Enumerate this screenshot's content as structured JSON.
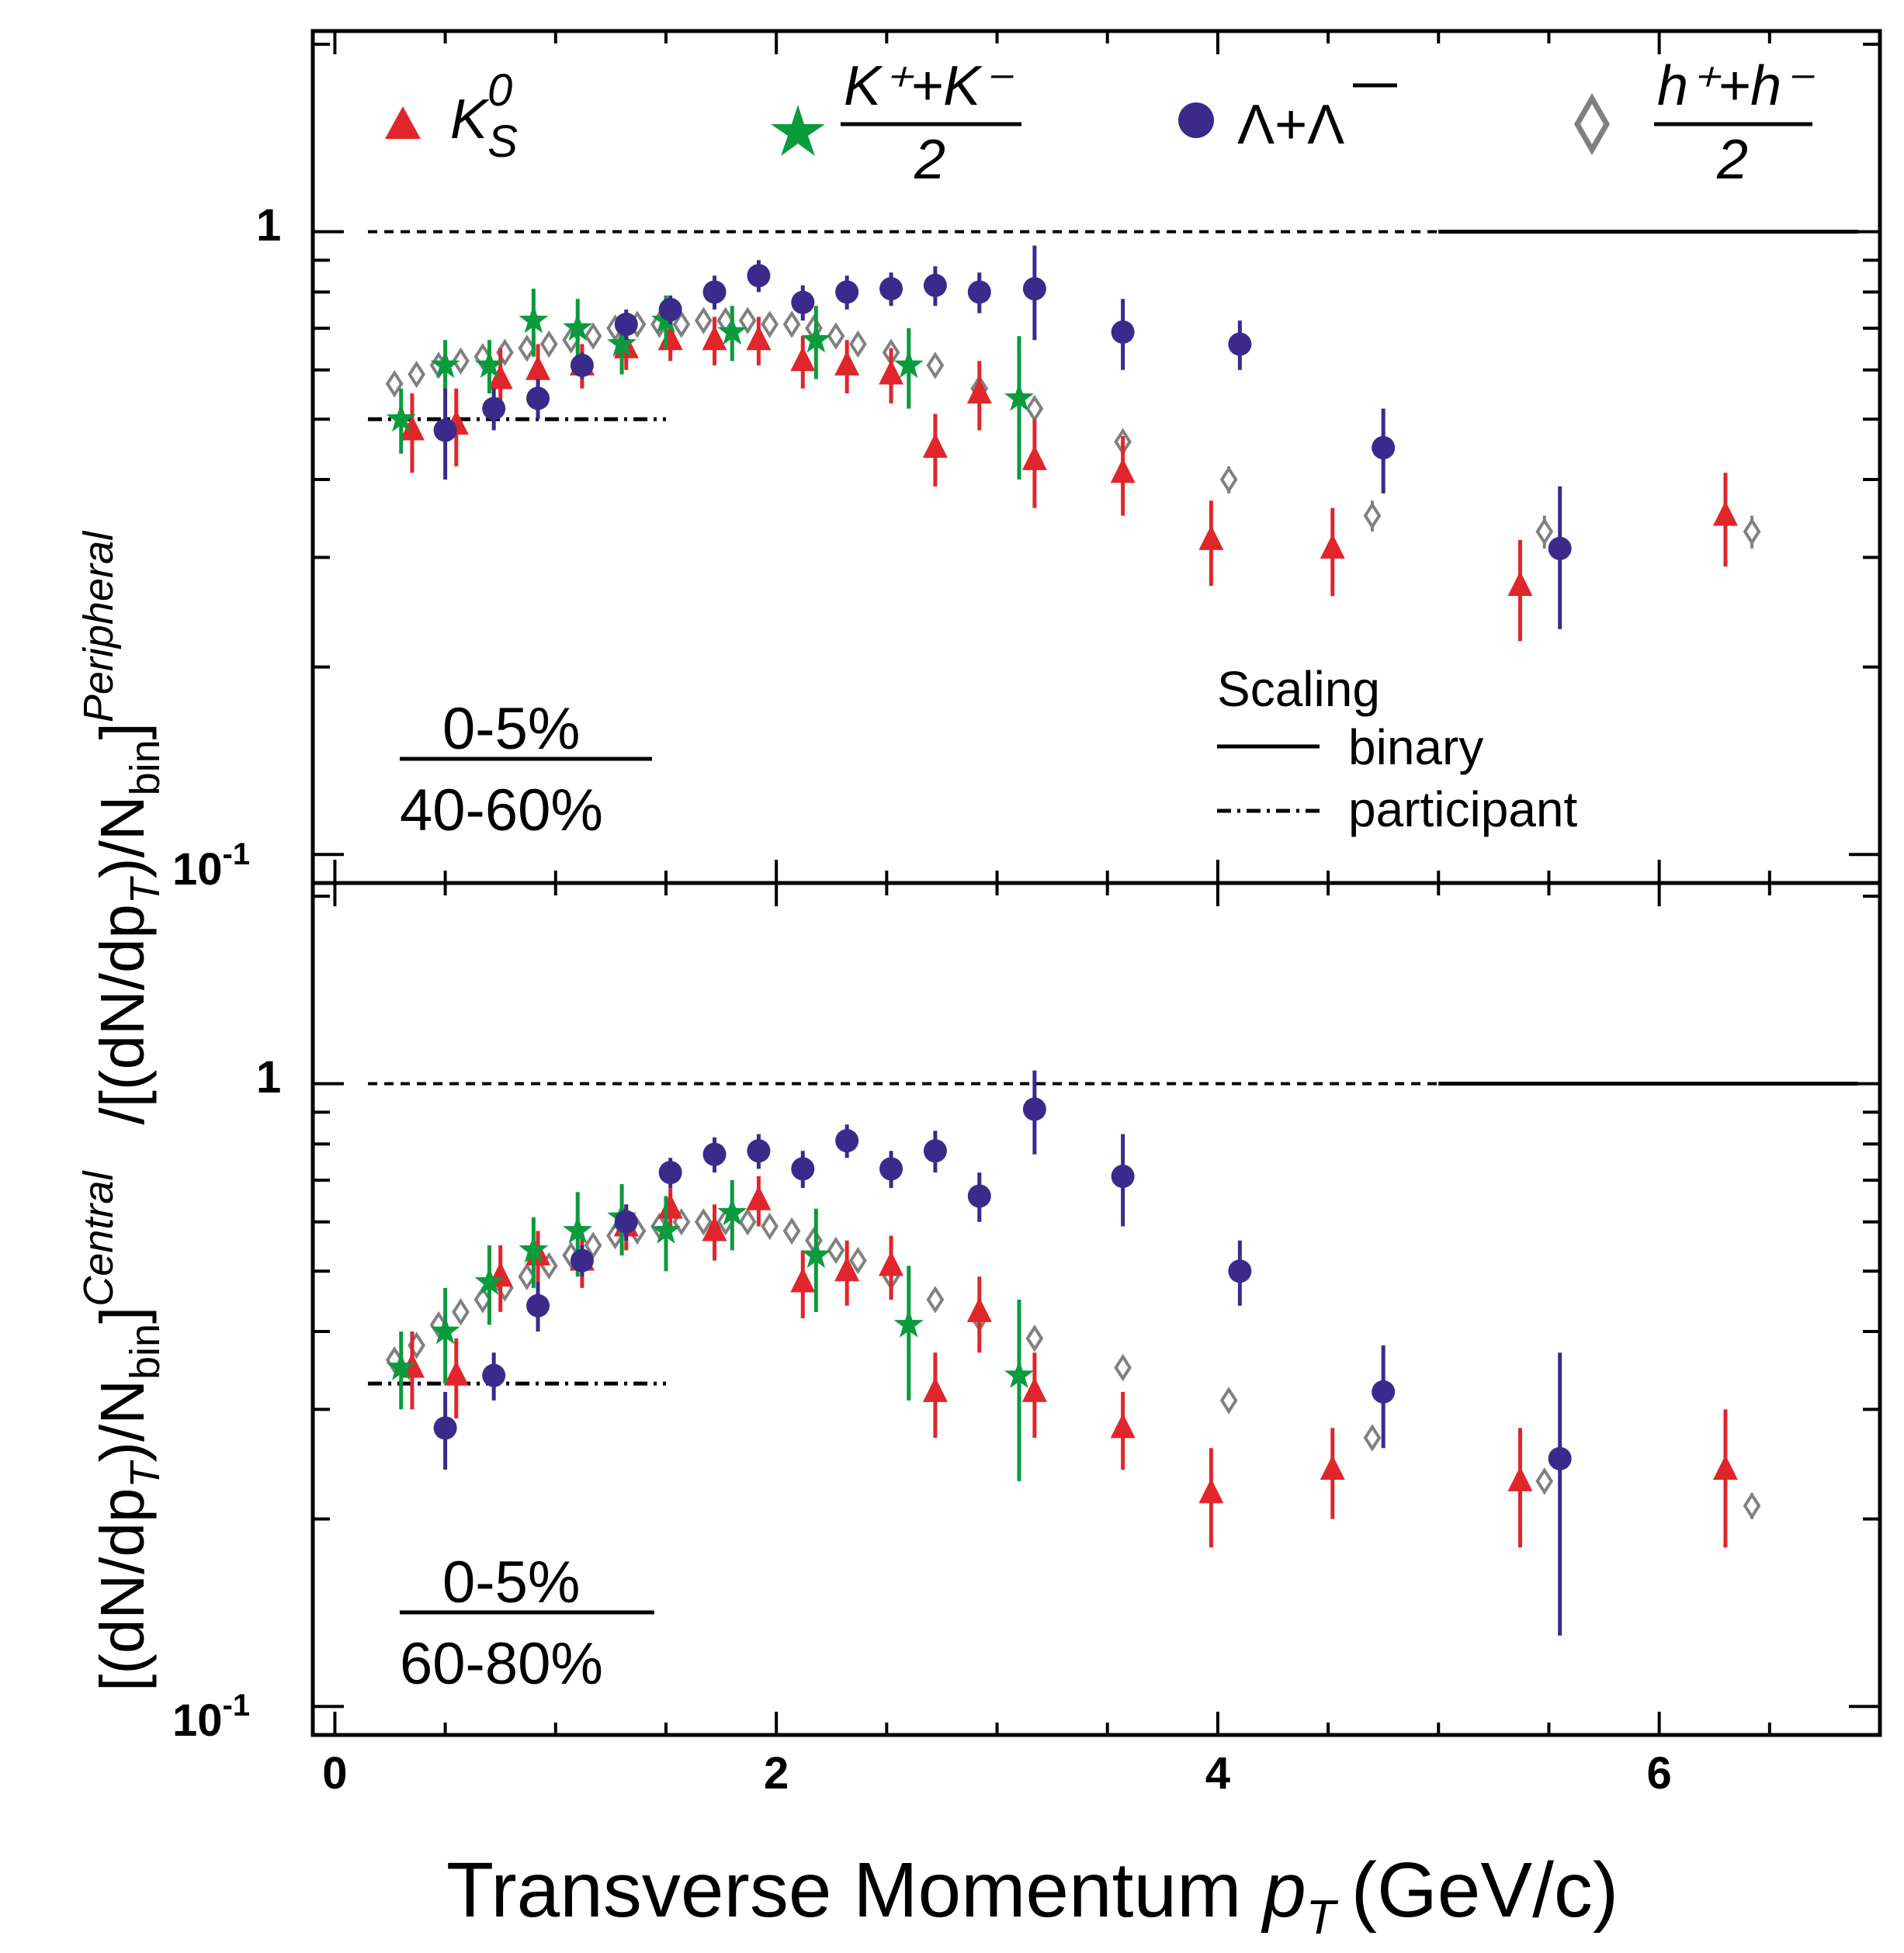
{
  "chart_data": {
    "type": "scatter",
    "x_axis": {
      "label": "Transverse Momentum",
      "variable": "p",
      "variable_sub": "T",
      "unit": "(GeV/c)",
      "range": [
        -0.1,
        7.0
      ],
      "ticks": [
        "0",
        "2",
        "4",
        "6"
      ]
    },
    "y_axis": {
      "scale": "log",
      "range": [
        0.09,
        2.1
      ],
      "tick_one": "1",
      "tick_tenth_base": "10",
      "tick_tenth_exp": "-1"
    },
    "y_title": {
      "central_part": "[(dN/dp",
      "central_sub": "T",
      "central_close": ")/N",
      "central_bin": "bin",
      "central_sup": "Central",
      "peripheral_part": "/[(dN/dp",
      "peripheral_sup": "Peripheral"
    },
    "legend": [
      {
        "key": "k0s",
        "marker": "triangle",
        "color": "#e0262b",
        "main": "K",
        "sup": "0",
        "sub": "S"
      },
      {
        "key": "kpm",
        "marker": "star",
        "color": "#0a9b3c",
        "numerator": "K⁺+K⁻",
        "denominator": "2"
      },
      {
        "key": "lambda",
        "marker": "circle",
        "color": "#3b2a8c",
        "label": "Λ+Λ"
      },
      {
        "key": "hpm",
        "marker": "diamond",
        "color": "#808080",
        "numerator": "h⁺+h⁻",
        "denominator": "2"
      }
    ],
    "scaling_legend": {
      "title": "Scaling",
      "binary": "binary",
      "participant": "participant"
    },
    "panels": [
      {
        "id": "top",
        "ratio_numerator": "0-5%",
        "ratio_denominator": "40-60%",
        "binary_level": 1.0,
        "participant_level": 0.5,
        "series": {
          "k0s": [
            [
              0.35,
              0.48,
              0.07
            ],
            [
              0.55,
              0.49,
              0.07
            ],
            [
              0.75,
              0.58,
              0.07
            ],
            [
              0.92,
              0.6,
              0.06
            ],
            [
              1.12,
              0.61,
              0.05
            ],
            [
              1.32,
              0.65,
              0.05
            ],
            [
              1.52,
              0.67,
              0.05
            ],
            [
              1.72,
              0.67,
              0.06
            ],
            [
              1.92,
              0.67,
              0.06
            ],
            [
              2.12,
              0.62,
              0.06
            ],
            [
              2.32,
              0.61,
              0.06
            ],
            [
              2.52,
              0.59,
              0.06
            ],
            [
              2.72,
              0.45,
              0.06
            ],
            [
              2.92,
              0.55,
              0.07
            ],
            [
              3.17,
              0.43,
              0.07
            ],
            [
              3.57,
              0.41,
              0.06
            ],
            [
              3.97,
              0.32,
              0.05
            ],
            [
              4.52,
              0.31,
              0.05
            ],
            [
              5.37,
              0.27,
              0.05
            ],
            [
              6.3,
              0.35,
              0.06
            ]
          ],
          "kpm": [
            [
              0.3,
              0.5,
              0.06
            ],
            [
              0.5,
              0.61,
              0.06
            ],
            [
              0.7,
              0.61,
              0.06
            ],
            [
              0.9,
              0.72,
              0.09
            ],
            [
              1.1,
              0.7,
              0.08
            ],
            [
              1.3,
              0.66,
              0.07
            ],
            [
              1.5,
              0.72,
              0.07
            ],
            [
              1.8,
              0.69,
              0.07
            ],
            [
              2.18,
              0.67,
              0.09
            ],
            [
              2.6,
              0.61,
              0.09
            ],
            [
              3.1,
              0.54,
              0.14
            ]
          ],
          "lambda": [
            [
              0.5,
              0.48,
              0.08
            ],
            [
              0.72,
              0.52,
              0.04
            ],
            [
              0.92,
              0.54,
              0.04
            ],
            [
              1.12,
              0.61,
              0.03
            ],
            [
              1.32,
              0.71,
              0.04
            ],
            [
              1.52,
              0.75,
              0.04
            ],
            [
              1.72,
              0.8,
              0.05
            ],
            [
              1.92,
              0.85,
              0.05
            ],
            [
              2.12,
              0.77,
              0.05
            ],
            [
              2.32,
              0.8,
              0.05
            ],
            [
              2.52,
              0.81,
              0.05
            ],
            [
              2.72,
              0.82,
              0.06
            ],
            [
              2.92,
              0.8,
              0.06
            ],
            [
              3.17,
              0.81,
              0.14
            ],
            [
              3.57,
              0.69,
              0.09
            ],
            [
              4.1,
              0.66,
              0.06
            ],
            [
              4.75,
              0.45,
              0.07
            ],
            [
              5.55,
              0.31,
              0.08
            ]
          ],
          "hpm": [
            [
              0.27,
              0.57,
              0.02
            ],
            [
              0.37,
              0.59,
              0.02
            ],
            [
              0.47,
              0.61,
              0.02
            ],
            [
              0.57,
              0.62,
              0.02
            ],
            [
              0.67,
              0.63,
              0.02
            ],
            [
              0.77,
              0.64,
              0.02
            ],
            [
              0.87,
              0.65,
              0.02
            ],
            [
              0.97,
              0.66,
              0.02
            ],
            [
              1.07,
              0.67,
              0.02
            ],
            [
              1.17,
              0.68,
              0.02
            ],
            [
              1.27,
              0.7,
              0.02
            ],
            [
              1.37,
              0.71,
              0.02
            ],
            [
              1.47,
              0.71,
              0.02
            ],
            [
              1.57,
              0.71,
              0.02
            ],
            [
              1.67,
              0.72,
              0.02
            ],
            [
              1.77,
              0.72,
              0.02
            ],
            [
              1.87,
              0.72,
              0.02
            ],
            [
              1.97,
              0.71,
              0.02
            ],
            [
              2.07,
              0.71,
              0.02
            ],
            [
              2.17,
              0.7,
              0.02
            ],
            [
              2.27,
              0.68,
              0.02
            ],
            [
              2.37,
              0.66,
              0.02
            ],
            [
              2.52,
              0.64,
              0.02
            ],
            [
              2.72,
              0.61,
              0.02
            ],
            [
              2.92,
              0.56,
              0.02
            ],
            [
              3.17,
              0.52,
              0.02
            ],
            [
              3.57,
              0.46,
              0.02
            ],
            [
              4.05,
              0.4,
              0.02
            ],
            [
              4.7,
              0.35,
              0.02
            ],
            [
              5.48,
              0.33,
              0.02
            ],
            [
              6.42,
              0.33,
              0.02
            ]
          ]
        }
      },
      {
        "id": "bottom",
        "ratio_numerator": "0-5%",
        "ratio_denominator": "60-80%",
        "binary_level": 1.0,
        "participant_level": 0.33,
        "series": {
          "k0s": [
            [
              0.35,
              0.35,
              0.05
            ],
            [
              0.55,
              0.34,
              0.05
            ],
            [
              0.75,
              0.49,
              0.06
            ],
            [
              0.92,
              0.53,
              0.05
            ],
            [
              1.12,
              0.52,
              0.05
            ],
            [
              1.32,
              0.59,
              0.05
            ],
            [
              1.52,
              0.63,
              0.05
            ],
            [
              1.72,
              0.58,
              0.06
            ],
            [
              1.92,
              0.65,
              0.06
            ],
            [
              2.12,
              0.48,
              0.06
            ],
            [
              2.32,
              0.5,
              0.06
            ],
            [
              2.52,
              0.51,
              0.06
            ],
            [
              2.72,
              0.32,
              0.05
            ],
            [
              2.92,
              0.43,
              0.06
            ],
            [
              3.17,
              0.32,
              0.05
            ],
            [
              3.57,
              0.28,
              0.04
            ],
            [
              3.97,
              0.22,
              0.04
            ],
            [
              4.52,
              0.24,
              0.04
            ],
            [
              5.37,
              0.23,
              0.05
            ],
            [
              6.3,
              0.24,
              0.06
            ]
          ],
          "kpm": [
            [
              0.3,
              0.35,
              0.05
            ],
            [
              0.5,
              0.4,
              0.07
            ],
            [
              0.7,
              0.48,
              0.07
            ],
            [
              0.9,
              0.54,
              0.07
            ],
            [
              1.1,
              0.58,
              0.09
            ],
            [
              1.3,
              0.61,
              0.08
            ],
            [
              1.5,
              0.58,
              0.08
            ],
            [
              1.8,
              0.62,
              0.08
            ],
            [
              2.18,
              0.53,
              0.1
            ],
            [
              2.6,
              0.41,
              0.1
            ],
            [
              3.1,
              0.34,
              0.11
            ]
          ],
          "lambda": [
            [
              0.5,
              0.28,
              0.04
            ],
            [
              0.72,
              0.34,
              0.03
            ],
            [
              0.92,
              0.44,
              0.04
            ],
            [
              1.12,
              0.52,
              0.03
            ],
            [
              1.32,
              0.6,
              0.04
            ],
            [
              1.52,
              0.72,
              0.04
            ],
            [
              1.72,
              0.77,
              0.05
            ],
            [
              1.92,
              0.78,
              0.05
            ],
            [
              2.12,
              0.73,
              0.05
            ],
            [
              2.32,
              0.81,
              0.05
            ],
            [
              2.52,
              0.73,
              0.05
            ],
            [
              2.72,
              0.78,
              0.06
            ],
            [
              2.92,
              0.66,
              0.06
            ],
            [
              3.17,
              0.91,
              0.14
            ],
            [
              3.57,
              0.71,
              0.12
            ],
            [
              4.1,
              0.5,
              0.06
            ],
            [
              4.75,
              0.32,
              0.06
            ],
            [
              5.55,
              0.25,
              0.12
            ]
          ],
          "hpm": [
            [
              0.27,
              0.36,
              0.01
            ],
            [
              0.37,
              0.38,
              0.01
            ],
            [
              0.47,
              0.41,
              0.01
            ],
            [
              0.57,
              0.43,
              0.01
            ],
            [
              0.67,
              0.45,
              0.01
            ],
            [
              0.77,
              0.47,
              0.01
            ],
            [
              0.87,
              0.49,
              0.01
            ],
            [
              0.97,
              0.51,
              0.01
            ],
            [
              1.07,
              0.53,
              0.01
            ],
            [
              1.17,
              0.55,
              0.01
            ],
            [
              1.27,
              0.57,
              0.01
            ],
            [
              1.37,
              0.58,
              0.01
            ],
            [
              1.47,
              0.59,
              0.01
            ],
            [
              1.57,
              0.6,
              0.01
            ],
            [
              1.67,
              0.6,
              0.01
            ],
            [
              1.77,
              0.6,
              0.01
            ],
            [
              1.87,
              0.6,
              0.01
            ],
            [
              1.97,
              0.59,
              0.01
            ],
            [
              2.07,
              0.58,
              0.01
            ],
            [
              2.17,
              0.56,
              0.01
            ],
            [
              2.27,
              0.54,
              0.01
            ],
            [
              2.37,
              0.52,
              0.01
            ],
            [
              2.52,
              0.49,
              0.01
            ],
            [
              2.72,
              0.45,
              0.01
            ],
            [
              2.92,
              0.42,
              0.01
            ],
            [
              3.17,
              0.39,
              0.01
            ],
            [
              3.57,
              0.35,
              0.01
            ],
            [
              4.05,
              0.31,
              0.01
            ],
            [
              4.7,
              0.27,
              0.01
            ],
            [
              5.48,
              0.23,
              0.01
            ],
            [
              6.42,
              0.21,
              0.01
            ]
          ]
        }
      }
    ]
  }
}
